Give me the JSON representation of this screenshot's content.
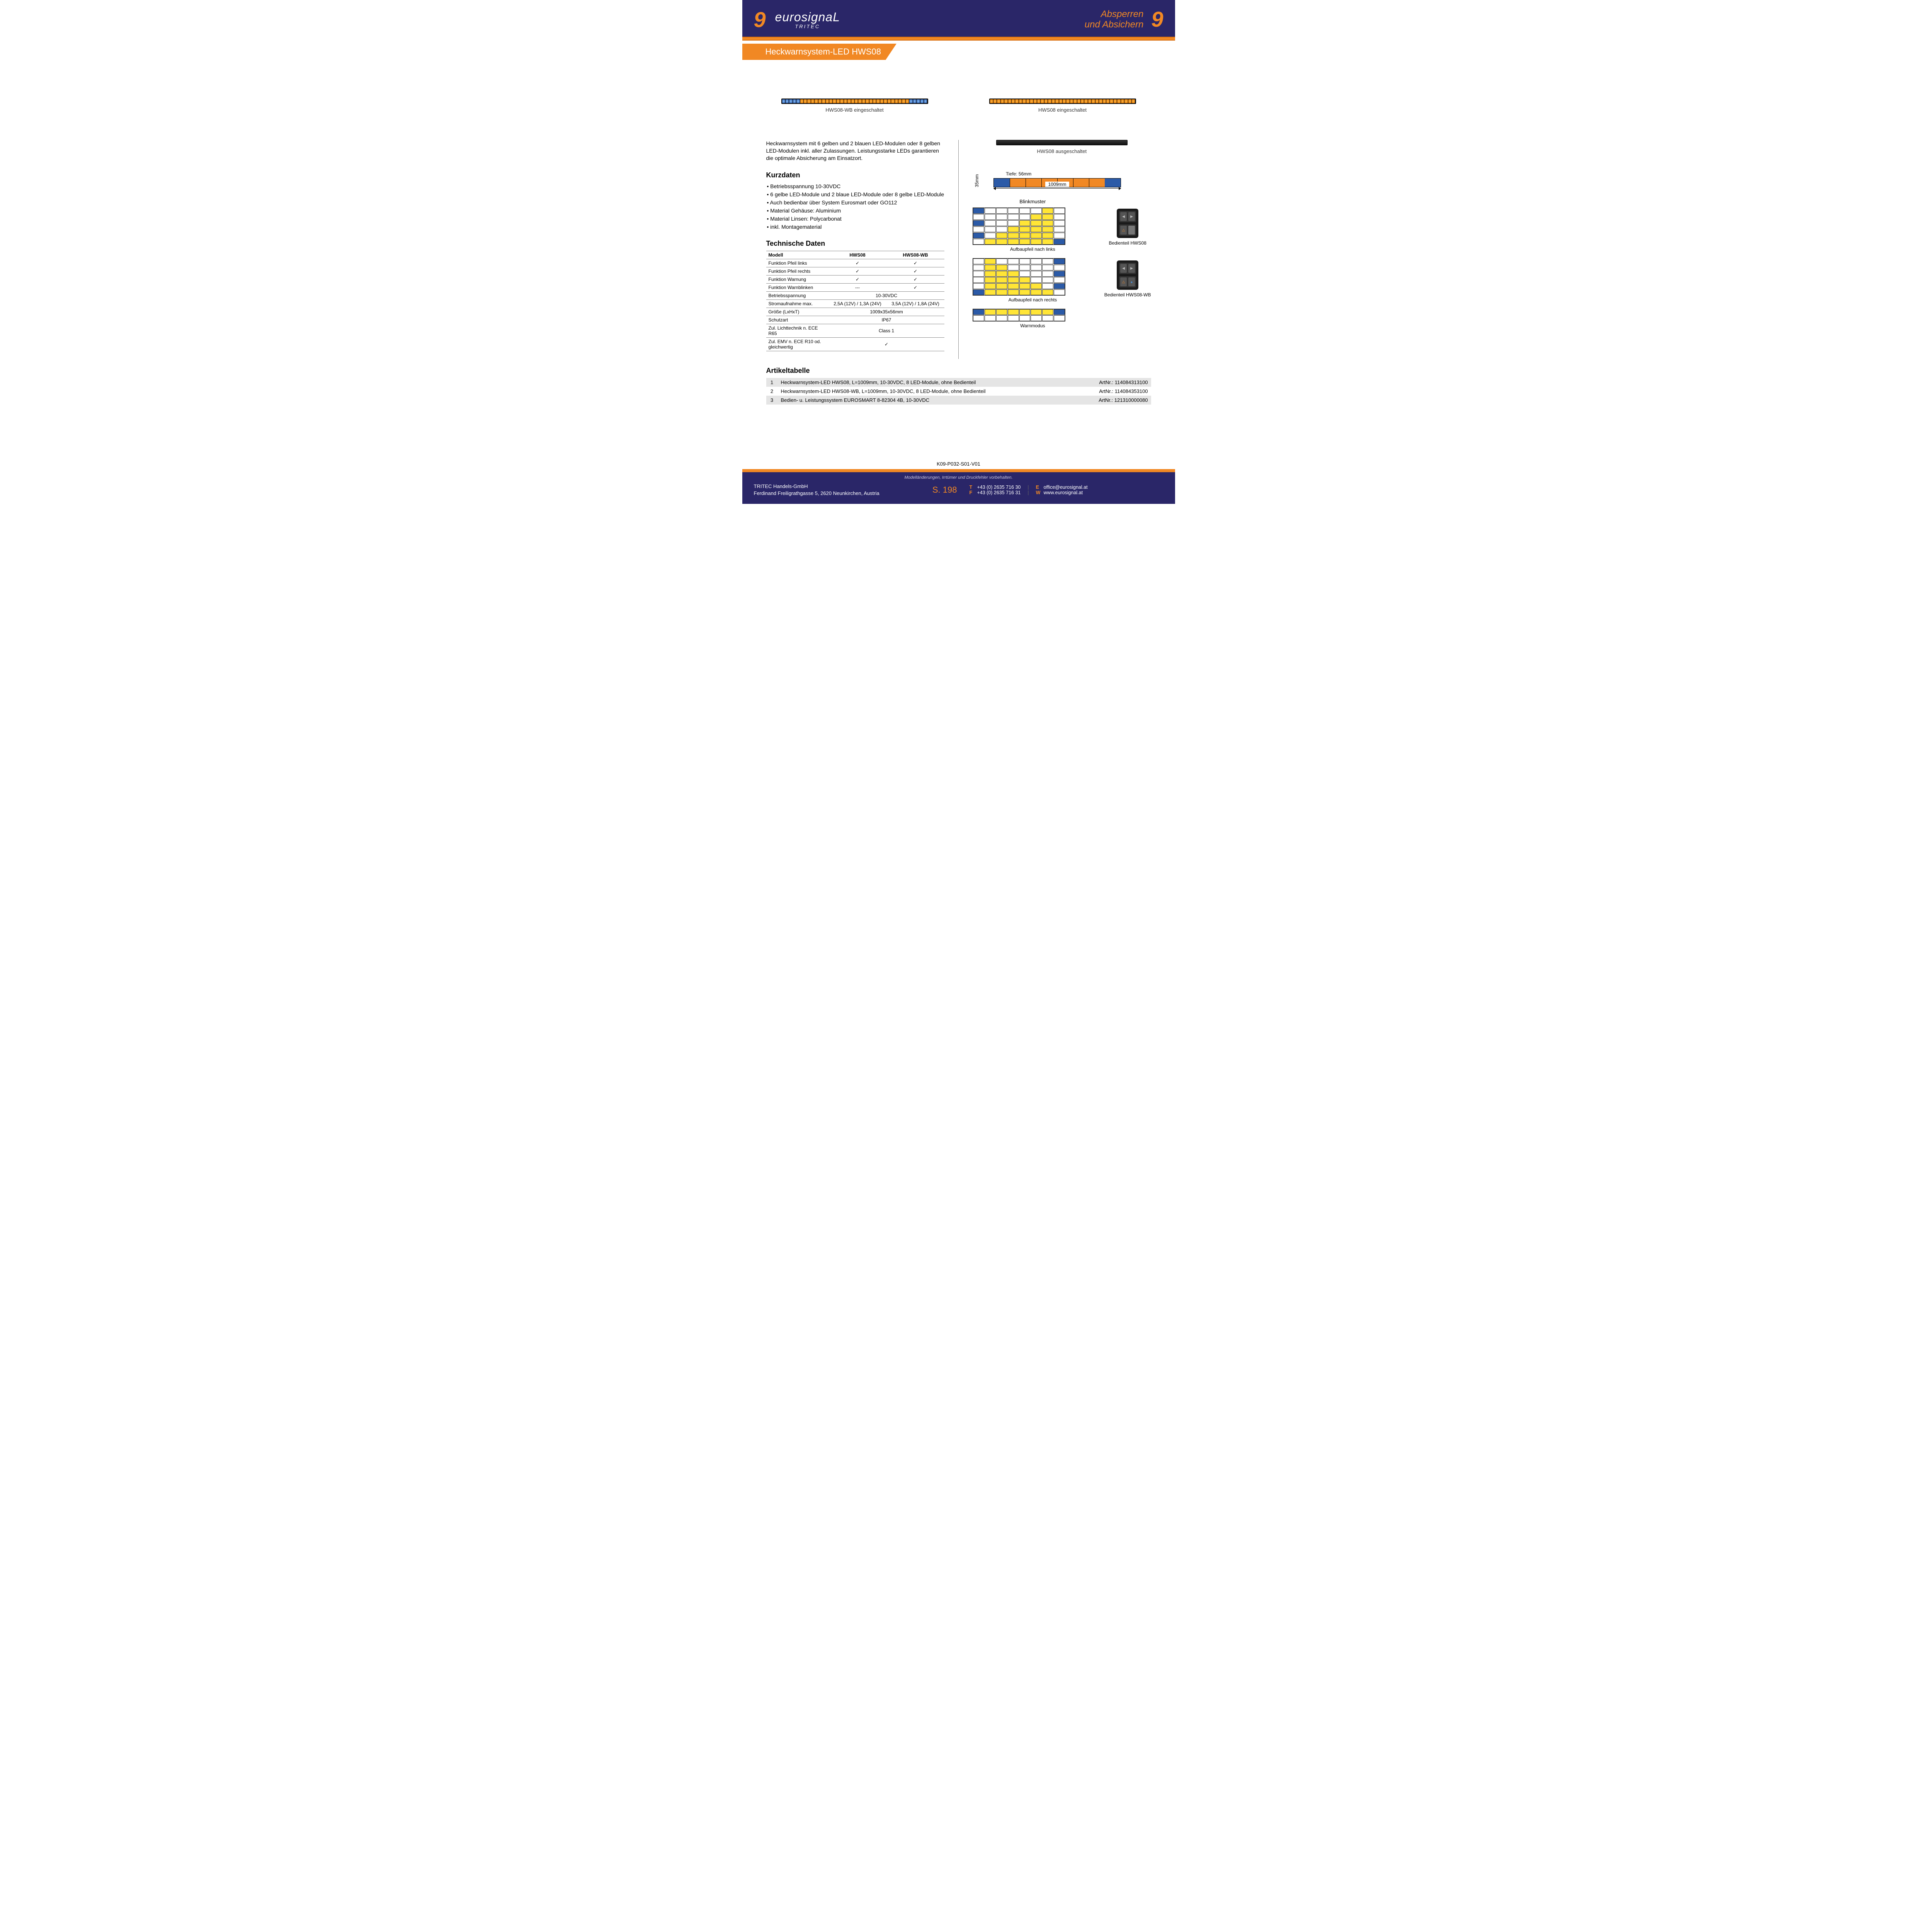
{
  "header": {
    "chapter_number": "9",
    "brand_main": "eurosignaL",
    "brand_sub": "TRITEC",
    "section_line1": "Absperren",
    "section_line2": "und Absichern"
  },
  "title": "Heckwarnsystem-LED HWS08",
  "products": {
    "left_caption": "HWS08-WB eingeschaltet",
    "right_caption": "HWS08 eingeschaltet",
    "off_caption": "HWS08 ausgeschaltet"
  },
  "intro": "Heckwarnsystem mit 6 gelben und 2 blauen LED-Modulen oder 8 gelben LED-Modulen inkl. aller Zulassungen. Leistungsstarke LEDs garantieren die optimale Absicherung am Einsatzort.",
  "kurzdaten": {
    "heading": "Kurzdaten",
    "items": [
      "Betriebsspannung 10-30VDC",
      "6 gelbe LED-Module und 2 blaue LED-Module oder 8 gelbe LED-Module",
      "Auch bedienbar über System Eurosmart oder GO112",
      "Material Gehäuse: Aluminium",
      "Material Linsen: Polycarbonat",
      "inkl. Montagematerial"
    ]
  },
  "tech": {
    "heading": "Technische Daten",
    "col_model": "Modell",
    "col_a": "HWS08",
    "col_b": "HWS08-WB",
    "rows": [
      {
        "label": "Funktion Pfeil links",
        "a": "✓",
        "b": "✓"
      },
      {
        "label": "Funktion Pfeil rechts",
        "a": "✓",
        "b": "✓"
      },
      {
        "label": "Funktion Warnung",
        "a": "✓",
        "b": "✓"
      },
      {
        "label": "Funktion Warnblinken",
        "a": "---",
        "b": "✓"
      }
    ],
    "merged_rows": [
      {
        "label": "Betriebsspannung",
        "val": "10-30VDC"
      }
    ],
    "split_rows": [
      {
        "label": "Stromaufnahme max.",
        "a": "2,5A (12V) / 1,3A (24V)",
        "b": "3,5A (12V) / 1,8A (24V)"
      }
    ],
    "merged_rows2": [
      {
        "label": "Größe (LxHxT)",
        "val": "1009x35x56mm"
      },
      {
        "label": "Schutzart",
        "val": "IP67"
      },
      {
        "label": "Zul. Lichttechnik n. ECE R65",
        "val": "Class 1"
      },
      {
        "label": "Zul. EMV n. ECE R10 od. gleichwertig",
        "val": "✓"
      }
    ]
  },
  "dimensions": {
    "height": "35mm",
    "depth": "Tiefe: 56mm",
    "width": "1009mm",
    "colors": {
      "blue": "#2b5aa7",
      "amber": "#f18824"
    }
  },
  "blink": {
    "title": "Blinkmuster",
    "pattern1_label": "Aufbaupfeil nach links",
    "pattern2_label": "Aufbaupfeil nach rechts",
    "pattern3_label": "Warnmodus",
    "pattern1": [
      [
        "b",
        "",
        "",
        "",
        "",
        "",
        "y",
        ""
      ],
      [
        "",
        "",
        "",
        "",
        "",
        "y",
        "y",
        ""
      ],
      [
        "b",
        "",
        "",
        "",
        "y",
        "y",
        "y",
        ""
      ],
      [
        "",
        "",
        "",
        "y",
        "y",
        "y",
        "y",
        ""
      ],
      [
        "b",
        "",
        "y",
        "y",
        "y",
        "y",
        "y",
        ""
      ],
      [
        "",
        "y",
        "y",
        "y",
        "y",
        "y",
        "y",
        "b"
      ]
    ],
    "pattern2": [
      [
        "",
        "y",
        "",
        "",
        "",
        "",
        "",
        "b"
      ],
      [
        "",
        "y",
        "y",
        "",
        "",
        "",
        "",
        ""
      ],
      [
        "",
        "y",
        "y",
        "y",
        "",
        "",
        "",
        "b"
      ],
      [
        "",
        "y",
        "y",
        "y",
        "y",
        "",
        "",
        ""
      ],
      [
        "",
        "y",
        "y",
        "y",
        "y",
        "y",
        "",
        "b"
      ],
      [
        "b",
        "y",
        "y",
        "y",
        "y",
        "y",
        "y",
        ""
      ]
    ],
    "pattern3": [
      [
        "b",
        "y",
        "y",
        "y",
        "y",
        "y",
        "y",
        "b"
      ],
      [
        "",
        "",
        "",
        "",
        "",
        "",
        "",
        ""
      ]
    ],
    "controls": {
      "label_a": "Bedienteil HWS08",
      "label_b": "Bedienteil HWS08-WB"
    }
  },
  "articles": {
    "heading": "Artikeltabelle",
    "artnr_prefix": "ArtNr.: ",
    "rows": [
      {
        "n": "1",
        "desc": "Heckwarnsystem-LED HWS08, L=1009mm, 10-30VDC, 8 LED-Module, ohne Bedienteil",
        "art": "114084313100"
      },
      {
        "n": "2",
        "desc": "Heckwarnsystem-LED HWS08-WB, L=1009mm, 10-30VDC, 8 LED-Module, ohne Bedienteil",
        "art": "114084353100"
      },
      {
        "n": "3",
        "desc": "Bedien- u. Leistungssystem EUROSMART 8-82304 4B, 10-30VDC",
        "art": "121310000080"
      }
    ]
  },
  "doc_code": "K09-P032-S01-V01",
  "footer": {
    "disclaimer": "Modelländerungen, Irrtümer und Druckfehler vorbehalten.",
    "company": "TRITEC Handels-GmbH",
    "address": "Ferdinand Freiligrathgasse 5, 2620 Neunkirchen, Austria",
    "page": "S. 198",
    "phone_label": "T",
    "phone": "+43 (0) 2635 716 30",
    "fax_label": "F",
    "fax": "+43 (0) 2635 716 31",
    "email_label": "E",
    "email": "office@eurosignal.at",
    "web_label": "W",
    "web": "www.eurosignal.at"
  },
  "colors": {
    "navy": "#2a2668",
    "orange": "#f18824",
    "yellow": "#ffe536",
    "blue": "#2b5aa7"
  }
}
